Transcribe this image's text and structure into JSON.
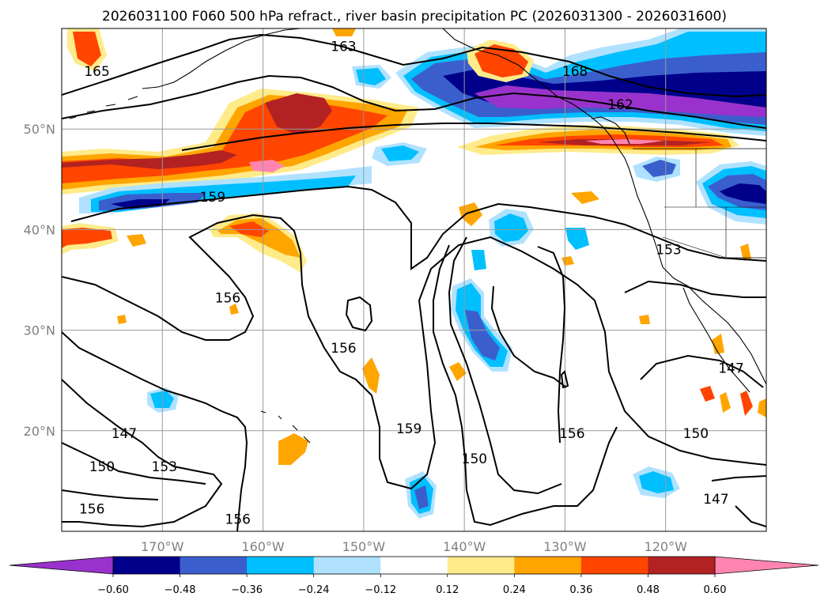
{
  "title": "2026031100 F060 500 hPa refract., river basin precipitation PC (2026031300 - 2026031600)",
  "map": {
    "lon_range": [
      -180,
      -110
    ],
    "lat_range": [
      10,
      60
    ],
    "lon_ticks": [
      {
        "lon": -170,
        "label": "170°W"
      },
      {
        "lon": -160,
        "label": "160°W"
      },
      {
        "lon": -150,
        "label": "150°W"
      },
      {
        "lon": -140,
        "label": "140°W"
      },
      {
        "lon": -130,
        "label": "130°W"
      },
      {
        "lon": -120,
        "label": "120°W"
      }
    ],
    "lat_ticks": [
      {
        "lat": 20,
        "label": "20°N"
      },
      {
        "lat": 30,
        "label": "30°N"
      },
      {
        "lat": 40,
        "label": "40°N"
      },
      {
        "lat": 50,
        "label": "50°N"
      }
    ],
    "grid": true
  },
  "colorbar": {
    "boundaries": [
      -0.6,
      -0.48,
      -0.36,
      -0.24,
      -0.12,
      0.12,
      0.24,
      0.36,
      0.48,
      0.6
    ],
    "labels": [
      "−0.60",
      "−0.48",
      "−0.36",
      "−0.24",
      "−0.12",
      "0.12",
      "0.24",
      "0.36",
      "0.48",
      "0.60"
    ],
    "colors": [
      "#9932cc",
      "#00008b",
      "#3a5fcd",
      "#00bfff",
      "#b0e2ff",
      "#ffffff",
      "#ffeb8a",
      "#ffa500",
      "#ff4500",
      "#b22222",
      "#ff85b0"
    ],
    "extend": "both"
  },
  "contour_labels": [
    {
      "text": "165",
      "lon": -176.5,
      "lat": 55.5
    },
    {
      "text": "163",
      "lon": -152.0,
      "lat": 58.0
    },
    {
      "text": "168",
      "lon": -129.0,
      "lat": 55.5
    },
    {
      "text": "162",
      "lon": -124.5,
      "lat": 52.2
    },
    {
      "text": "159",
      "lon": -165.0,
      "lat": 43.0
    },
    {
      "text": "153",
      "lon": -119.7,
      "lat": 37.8
    },
    {
      "text": "156",
      "lon": -163.5,
      "lat": 33.0
    },
    {
      "text": "156",
      "lon": -152.0,
      "lat": 28.0
    },
    {
      "text": "147",
      "lon": -113.5,
      "lat": 26.0
    },
    {
      "text": "159",
      "lon": -145.5,
      "lat": 20.0
    },
    {
      "text": "156",
      "lon": -129.3,
      "lat": 19.5
    },
    {
      "text": "150",
      "lon": -139.0,
      "lat": 17.0
    },
    {
      "text": "150",
      "lon": -117.0,
      "lat": 19.5
    },
    {
      "text": "147",
      "lon": -173.8,
      "lat": 19.5
    },
    {
      "text": "150",
      "lon": -176.0,
      "lat": 16.2
    },
    {
      "text": "153",
      "lon": -169.8,
      "lat": 16.2
    },
    {
      "text": "147",
      "lon": -115.0,
      "lat": 13.0
    },
    {
      "text": "156",
      "lon": -177.0,
      "lat": 12.0
    },
    {
      "text": "156",
      "lon": -162.5,
      "lat": 11.0
    }
  ]
}
